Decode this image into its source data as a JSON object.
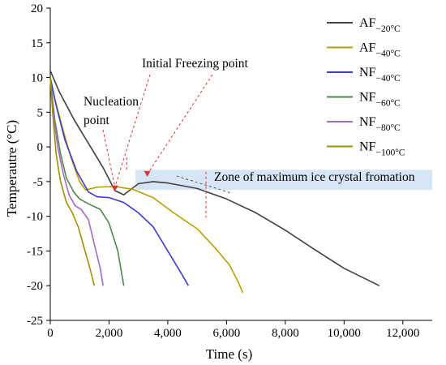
{
  "chart_data": {
    "type": "line",
    "title": "",
    "xlabel": "Time (s)",
    "ylabel": "Temperautre (°C)",
    "xlim": [
      0,
      13000
    ],
    "ylim": [
      -25,
      20
    ],
    "x_ticks": [
      0,
      2000,
      4000,
      6000,
      8000,
      10000,
      12000
    ],
    "x_tick_labels": [
      "0",
      "2,000",
      "4,000",
      "6,000",
      "8,000",
      "10,000",
      "12,000"
    ],
    "y_ticks": [
      20,
      15,
      10,
      5,
      0,
      -5,
      -10,
      -15,
      -20,
      -25
    ],
    "y_tick_labels": [
      "20",
      "15",
      "10",
      "5",
      "0",
      "-5",
      "-10",
      "-15",
      "-20",
      "-25"
    ],
    "grid": false,
    "legend_position": "top-right",
    "series": [
      {
        "name": "AF",
        "subscript": "−20°C",
        "color": "#404040",
        "points": [
          [
            0,
            11
          ],
          [
            300,
            8
          ],
          [
            800,
            4
          ],
          [
            1300,
            0.5
          ],
          [
            1800,
            -3
          ],
          [
            2200,
            -6.3
          ],
          [
            2500,
            -6.9
          ],
          [
            3000,
            -5.3
          ],
          [
            3500,
            -5
          ],
          [
            4000,
            -5.2
          ],
          [
            5000,
            -6
          ],
          [
            6000,
            -7.5
          ],
          [
            7000,
            -9.5
          ],
          [
            8000,
            -12
          ],
          [
            9000,
            -14.8
          ],
          [
            10000,
            -17.5
          ],
          [
            11200,
            -20
          ]
        ]
      },
      {
        "name": "AF",
        "subscript": "−40°C",
        "color": "#b8a000",
        "points": [
          [
            0,
            10
          ],
          [
            150,
            7
          ],
          [
            400,
            3
          ],
          [
            700,
            -1.5
          ],
          [
            1000,
            -5
          ],
          [
            1200,
            -6.2
          ],
          [
            1600,
            -5.8
          ],
          [
            2200,
            -5.7
          ],
          [
            2800,
            -6.1
          ],
          [
            3500,
            -7.3
          ],
          [
            4200,
            -9.5
          ],
          [
            5000,
            -11.8
          ],
          [
            5600,
            -14.5
          ],
          [
            6100,
            -17
          ],
          [
            6400,
            -19.5
          ],
          [
            6550,
            -21
          ]
        ]
      },
      {
        "name": "NF",
        "subscript": "−40°C",
        "color": "#3c3cd0",
        "points": [
          [
            0,
            10
          ],
          [
            200,
            6
          ],
          [
            500,
            1
          ],
          [
            900,
            -3.5
          ],
          [
            1300,
            -6.5
          ],
          [
            1600,
            -7.2
          ],
          [
            2000,
            -7.3
          ],
          [
            2500,
            -8
          ],
          [
            3000,
            -9.5
          ],
          [
            3500,
            -11.5
          ],
          [
            4000,
            -15
          ],
          [
            4500,
            -18.5
          ],
          [
            4700,
            -20
          ]
        ]
      },
      {
        "name": "NF",
        "subscript": "−60°C",
        "color": "#4a8a4a",
        "points": [
          [
            0,
            10
          ],
          [
            150,
            4
          ],
          [
            350,
            -1
          ],
          [
            550,
            -4.5
          ],
          [
            800,
            -6.5
          ],
          [
            1000,
            -7.5
          ],
          [
            1300,
            -8.2
          ],
          [
            1700,
            -9
          ],
          [
            2000,
            -11
          ],
          [
            2300,
            -15
          ],
          [
            2500,
            -20
          ]
        ]
      },
      {
        "name": "NF",
        "subscript": "−80°C",
        "color": "#a868c8",
        "points": [
          [
            0,
            10
          ],
          [
            100,
            5
          ],
          [
            250,
            0
          ],
          [
            450,
            -4
          ],
          [
            650,
            -7
          ],
          [
            850,
            -8.5
          ],
          [
            1050,
            -9
          ],
          [
            1300,
            -10.5
          ],
          [
            1500,
            -14
          ],
          [
            1700,
            -17.5
          ],
          [
            1800,
            -20
          ]
        ]
      },
      {
        "name": "NF",
        "subscript": "−100°C",
        "color": "#a09000",
        "points": [
          [
            0,
            10
          ],
          [
            80,
            5
          ],
          [
            200,
            -1
          ],
          [
            350,
            -5
          ],
          [
            550,
            -8
          ],
          [
            750,
            -9.5
          ],
          [
            950,
            -11.5
          ],
          [
            1150,
            -14.5
          ],
          [
            1350,
            -17.5
          ],
          [
            1500,
            -20
          ]
        ]
      }
    ],
    "annotations": {
      "initial_freezing": "Initial Freezing point",
      "nucleation_line1": "Nucleation",
      "nucleation_line2": "point",
      "zone": "Zone of maximum ice crystal fromation"
    },
    "zone_band_y": [
      -6.2,
      -3.3
    ],
    "nucleation_point": [
      2200,
      -6.5
    ],
    "initial_freezing_point": [
      3300,
      -4.3
    ]
  }
}
